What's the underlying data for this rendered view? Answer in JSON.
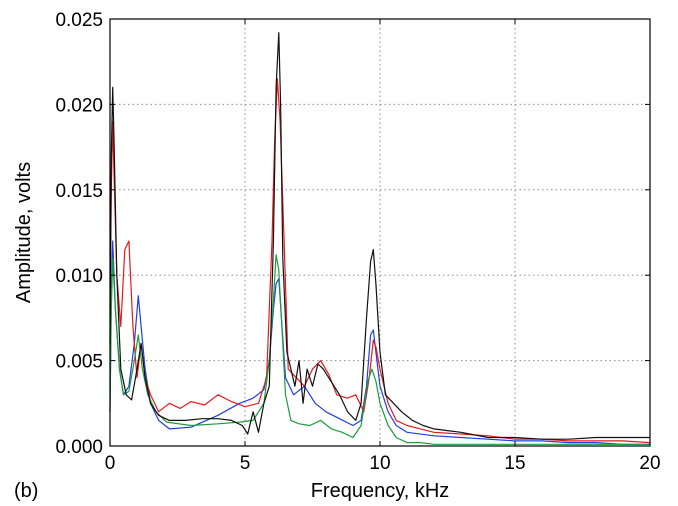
{
  "panel_label": "(b)",
  "chart_data": {
    "type": "line",
    "title": "",
    "xlabel": "Frequency, kHz",
    "ylabel": "Amplitude, volts",
    "xlim": [
      0,
      20
    ],
    "ylim": [
      0,
      0.025
    ],
    "xticks": [
      "0",
      "5",
      "10",
      "15",
      "20"
    ],
    "yticks": [
      "0.000",
      "0.005",
      "0.010",
      "0.015",
      "0.020",
      "0.025"
    ],
    "grid": true,
    "legend": "none",
    "series": [
      {
        "color": "#1f3fe6",
        "x": [
          0,
          0.05,
          0.1,
          0.2,
          0.35,
          0.5,
          0.7,
          0.9,
          1.05,
          1.15,
          1.3,
          1.5,
          1.8,
          2.2,
          3,
          4,
          4.8,
          5.3,
          5.7,
          5.9,
          6.05,
          6.15,
          6.25,
          6.35,
          6.5,
          6.8,
          7.2,
          7.6,
          8,
          8.5,
          9,
          9.3,
          9.5,
          9.65,
          9.75,
          9.85,
          10,
          10.3,
          10.6,
          11,
          12,
          13,
          14,
          15,
          16,
          17,
          18,
          19,
          20
        ],
        "y": [
          0.002,
          0.009,
          0.012,
          0.008,
          0.0045,
          0.003,
          0.0035,
          0.006,
          0.0088,
          0.007,
          0.0045,
          0.0025,
          0.0015,
          0.001,
          0.0011,
          0.0018,
          0.0025,
          0.0028,
          0.0033,
          0.005,
          0.008,
          0.0095,
          0.0098,
          0.0075,
          0.004,
          0.003,
          0.0035,
          0.0025,
          0.002,
          0.0016,
          0.0012,
          0.0015,
          0.0035,
          0.0065,
          0.0068,
          0.0055,
          0.0035,
          0.002,
          0.0012,
          0.0008,
          0.0006,
          0.0005,
          0.0004,
          0.0003,
          0.0003,
          0.0002,
          0.0002,
          0.0001,
          0.0001
        ]
      },
      {
        "color": "#e41a1c",
        "x": [
          0,
          0.05,
          0.1,
          0.15,
          0.25,
          0.4,
          0.55,
          0.7,
          0.85,
          1.0,
          1.15,
          1.3,
          1.5,
          1.8,
          2.2,
          2.6,
          3,
          3.5,
          4,
          4.5,
          5,
          5.5,
          5.8,
          6.0,
          6.1,
          6.2,
          6.3,
          6.45,
          6.6,
          6.9,
          7.2,
          7.5,
          7.8,
          8.1,
          8.4,
          8.8,
          9.1,
          9.4,
          9.6,
          9.75,
          9.85,
          10.0,
          10.3,
          10.6,
          11,
          11.5,
          12,
          13,
          14,
          15,
          16,
          17,
          18,
          19,
          20
        ],
        "y": [
          0.008,
          0.015,
          0.019,
          0.016,
          0.01,
          0.007,
          0.0115,
          0.012,
          0.007,
          0.004,
          0.006,
          0.004,
          0.003,
          0.002,
          0.0025,
          0.0022,
          0.0026,
          0.0024,
          0.003,
          0.0026,
          0.0023,
          0.0025,
          0.004,
          0.012,
          0.018,
          0.0215,
          0.019,
          0.012,
          0.0045,
          0.004,
          0.0035,
          0.0045,
          0.005,
          0.0042,
          0.003,
          0.0028,
          0.003,
          0.002,
          0.004,
          0.0062,
          0.0058,
          0.0045,
          0.0025,
          0.0015,
          0.0012,
          0.001,
          0.0008,
          0.0007,
          0.0006,
          0.0004,
          0.0004,
          0.0003,
          0.0003,
          0.0003,
          0.0002
        ]
      },
      {
        "color": "#1a9e3a",
        "x": [
          0,
          0.05,
          0.1,
          0.2,
          0.35,
          0.5,
          0.7,
          0.9,
          1.05,
          1.2,
          1.4,
          1.7,
          2.1,
          3,
          4,
          4.8,
          5.3,
          5.7,
          5.9,
          6.05,
          6.15,
          6.25,
          6.35,
          6.5,
          6.7,
          7,
          7.4,
          7.8,
          8.2,
          8.6,
          9,
          9.3,
          9.55,
          9.7,
          9.85,
          10,
          10.3,
          10.6,
          11,
          11.5,
          12,
          13,
          14,
          15,
          16,
          17,
          18,
          19,
          20
        ],
        "y": [
          0.002,
          0.008,
          0.011,
          0.008,
          0.0045,
          0.003,
          0.0032,
          0.005,
          0.0065,
          0.0045,
          0.003,
          0.002,
          0.0014,
          0.0012,
          0.0013,
          0.0014,
          0.0015,
          0.0025,
          0.005,
          0.0085,
          0.0112,
          0.0103,
          0.0075,
          0.003,
          0.0015,
          0.0013,
          0.0012,
          0.0015,
          0.001,
          0.0008,
          0.0005,
          0.0012,
          0.0038,
          0.0045,
          0.0038,
          0.0025,
          0.0012,
          0.0005,
          0.0002,
          0.0002,
          0.0001,
          0.0001,
          0.0001,
          0.0001,
          0.0001,
          0.0001,
          0.0001,
          0.0001,
          0.0001
        ]
      },
      {
        "color": "#111111",
        "x": [
          0,
          0.05,
          0.1,
          0.15,
          0.25,
          0.4,
          0.6,
          0.8,
          1.0,
          1.15,
          1.3,
          1.5,
          1.8,
          2.2,
          2.8,
          3.4,
          4,
          4.5,
          4.9,
          5.1,
          5.3,
          5.5,
          5.7,
          5.9,
          6.05,
          6.15,
          6.25,
          6.32,
          6.4,
          6.55,
          6.7,
          6.85,
          7.0,
          7.15,
          7.3,
          7.5,
          7.7,
          7.9,
          8.1,
          8.3,
          8.5,
          8.8,
          9.1,
          9.3,
          9.5,
          9.65,
          9.75,
          9.85,
          10.0,
          10.2,
          10.5,
          10.8,
          11.2,
          11.6,
          12,
          12.5,
          13,
          14,
          15,
          16,
          17,
          18,
          19,
          20
        ],
        "y": [
          0.006,
          0.017,
          0.021,
          0.018,
          0.01,
          0.0045,
          0.003,
          0.0027,
          0.0045,
          0.006,
          0.004,
          0.0025,
          0.0018,
          0.0015,
          0.0015,
          0.0016,
          0.0016,
          0.0015,
          0.0012,
          0.0007,
          0.002,
          0.0008,
          0.0025,
          0.0035,
          0.012,
          0.021,
          0.0242,
          0.02,
          0.011,
          0.0055,
          0.0045,
          0.0035,
          0.005,
          0.0025,
          0.0045,
          0.0035,
          0.0048,
          0.0045,
          0.004,
          0.0035,
          0.003,
          0.002,
          0.0015,
          0.0025,
          0.0075,
          0.0108,
          0.0115,
          0.0095,
          0.0055,
          0.003,
          0.0025,
          0.002,
          0.0015,
          0.0012,
          0.001,
          0.0009,
          0.0008,
          0.0005,
          0.0005,
          0.0004,
          0.0004,
          0.0005,
          0.0005,
          0.0005
        ]
      }
    ]
  }
}
